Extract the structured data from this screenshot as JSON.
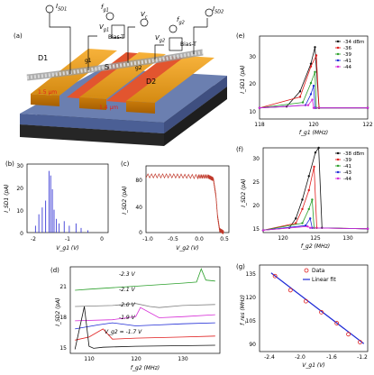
{
  "panel_a": {
    "label": "(a)",
    "ids1": "I",
    "ids1_sub": "SD1",
    "fg1": "f",
    "fg1_sub": "g1",
    "vc": "V",
    "vc_sub": "c",
    "fg2": "f",
    "fg2_sub": "g2",
    "ids2": "I",
    "ids2_sub": "SD2",
    "vg1": "V",
    "vg1_sub": "g1",
    "vg2": "V",
    "vg2_sub": "g2",
    "biasT": "Bias-T",
    "biasT2": "Bias-T",
    "d1": "D1",
    "s": "S",
    "d2": "D2",
    "g1": "g1",
    "g2": "g2",
    "l1": "1.5 μm",
    "l2": "1.4 μm"
  },
  "panel_b": {
    "label": "(b)",
    "ylabel": "I_SD1 (pA)",
    "xlabel": "V_g1 (V)",
    "yticks": [
      "30",
      "20",
      "10",
      "0"
    ],
    "xticks": [
      "-2",
      "-1",
      "0"
    ]
  },
  "panel_c": {
    "label": "(c)",
    "ylabel": "I_SD2 (pA)",
    "xlabel": "V_g2 (V)",
    "yticks": [
      "80",
      "40",
      "0"
    ],
    "xticks": [
      "-1.0",
      "-0.5",
      "0.0",
      "0.5"
    ]
  },
  "panel_d": {
    "label": "(d)",
    "ylabel": "I_SD2 (pA)",
    "xlabel": "f_g2 (MHz)",
    "yticks": [
      "21",
      "18",
      "15"
    ],
    "xticks": [
      "110",
      "120",
      "130"
    ],
    "annotations": [
      "-2.3 V",
      "-2.1 V",
      "-2.0 V",
      "-1.9 V",
      "V_g2 = -1.7 V"
    ],
    "colors": [
      "#2ca02c",
      "#7f7f7f",
      "#d62ad6",
      "#1f2bd6",
      "#e01c1c",
      "#111111"
    ]
  },
  "panel_e": {
    "label": "(e)",
    "ylabel": "I_SD1 (pA)",
    "xlabel": "f_g1 (MHz)",
    "yticks": [
      "30",
      "20",
      "10"
    ],
    "xticks": [
      "118",
      "120",
      "122"
    ],
    "legend": [
      "-34 dBm",
      "-36",
      "-39",
      "-41",
      "-44"
    ],
    "colors": [
      "#111111",
      "#e01c1c",
      "#2ca02c",
      "#1f2bd6",
      "#d62ad6"
    ]
  },
  "panel_f": {
    "label": "(f)",
    "ylabel": "I_SD2 (pA)",
    "xlabel": "f_g2 (MHz)",
    "yticks": [
      "30",
      "25",
      "20",
      "15"
    ],
    "xticks": [
      "120",
      "125",
      "130"
    ],
    "legend": [
      "-38 dBm",
      "-39",
      "-41",
      "-43",
      "-44"
    ],
    "colors": [
      "#111111",
      "#e01c1c",
      "#2ca02c",
      "#1f2bd6",
      "#d62ad6"
    ]
  },
  "panel_g": {
    "label": "(g)",
    "ylabel": "f_res (MHz)",
    "xlabel": "V_g1 (V)",
    "yticks": [
      "135",
      "120",
      "105",
      "90"
    ],
    "xticks": [
      "-2.4",
      "-2.0",
      "-1.6",
      "-1.2"
    ],
    "legend": [
      "Data",
      "Linear fit"
    ]
  },
  "chart_data": [
    {
      "type": "line",
      "panel": "(b)",
      "xlabel": "V_g1 (V)",
      "ylabel": "I_SD1 (pA)",
      "xlim": [
        -2.2,
        0.2
      ],
      "ylim": [
        0,
        30
      ],
      "series": [
        {
          "x": [
            -1.95,
            -1.85,
            -1.75,
            -1.65,
            -1.55,
            -1.5,
            -1.45,
            -1.4,
            -1.33,
            -1.25,
            -1.1,
            -0.95,
            -0.75,
            -0.6,
            -0.4
          ],
          "y": [
            3,
            8,
            11,
            14,
            27,
            25,
            19,
            10,
            6,
            4,
            5,
            3,
            4,
            2,
            1
          ]
        }
      ]
    },
    {
      "type": "line",
      "panel": "(c)",
      "xlabel": "V_g2 (V)",
      "ylabel": "I_SD2 (pA)",
      "xlim": [
        -1.0,
        0.6
      ],
      "ylim": [
        0,
        100
      ],
      "series": [
        {
          "x": [
            -1.0,
            -0.5,
            0.0,
            0.2,
            0.3,
            0.35,
            0.38,
            0.42,
            0.5
          ],
          "y": [
            85,
            85,
            84,
            84,
            80,
            55,
            25,
            4,
            0
          ]
        }
      ]
    },
    {
      "type": "line",
      "panel": "(d)",
      "xlabel": "f_g2 (MHz)",
      "ylabel": "I_SD2 (pA)",
      "xlim": [
        106,
        138
      ],
      "ylim": [
        14,
        22.5
      ],
      "series": [
        {
          "name": "-2.3 V",
          "x": [
            107,
            110,
            120,
            130,
            133,
            134,
            135,
            137
          ],
          "y": [
            20.2,
            20.3,
            20.6,
            20.9,
            21.0,
            22.3,
            21.2,
            21.1
          ]
        },
        {
          "name": "-2.1 V",
          "x": [
            107,
            115,
            120,
            123,
            125,
            130,
            137
          ],
          "y": [
            18.6,
            18.7,
            18.9,
            18.6,
            18.5,
            18.7,
            18.8
          ]
        },
        {
          "name": "-2.0 V",
          "x": [
            107,
            115,
            120,
            121,
            125,
            130,
            137
          ],
          "y": [
            17.2,
            17.3,
            17.6,
            18.5,
            17.5,
            17.6,
            17.8
          ]
        },
        {
          "name": "-1.9 V",
          "x": [
            107,
            112,
            115,
            120,
            125,
            130,
            137
          ],
          "y": [
            16.4,
            16.8,
            17.0,
            16.7,
            16.8,
            16.9,
            17.0
          ]
        },
        {
          "name": "-1.7 V",
          "x": [
            107,
            110,
            113,
            115,
            120,
            130,
            137
          ],
          "y": [
            15.3,
            15.6,
            16.4,
            15.4,
            15.5,
            15.6,
            15.7
          ]
        },
        {
          "name": "(black)",
          "x": [
            107,
            109,
            110,
            111,
            113,
            120,
            137
          ],
          "y": [
            14.4,
            18.6,
            14.7,
            14.5,
            14.6,
            14.7,
            14.8
          ]
        }
      ]
    },
    {
      "type": "line",
      "panel": "(e)",
      "xlabel": "f_g1 (MHz)",
      "ylabel": "I_SD1 (pA)",
      "xlim": [
        118,
        122
      ],
      "ylim": [
        5,
        35
      ],
      "series": [
        {
          "name": "-34 dBm",
          "x": [
            118,
            119,
            119.5,
            119.9,
            120.05,
            120.2,
            122
          ],
          "y": [
            9,
            9.5,
            15,
            25,
            31,
            9,
            9
          ]
        },
        {
          "name": "-36",
          "x": [
            118,
            119.5,
            119.9,
            120.1,
            120.2,
            122
          ],
          "y": [
            9,
            13,
            24,
            28,
            9,
            9
          ]
        },
        {
          "name": "-39",
          "x": [
            118,
            119.6,
            119.9,
            120.05,
            120.1,
            122
          ],
          "y": [
            9,
            11,
            18,
            22,
            9,
            9
          ]
        },
        {
          "name": "-41",
          "x": [
            118,
            119.7,
            119.9,
            120.0,
            120.05,
            122
          ],
          "y": [
            9,
            10,
            14,
            17,
            9,
            9
          ]
        },
        {
          "name": "-44",
          "x": [
            118,
            119.8,
            119.95,
            120.0,
            122
          ],
          "y": [
            9,
            10,
            12,
            9,
            9
          ]
        }
      ]
    },
    {
      "type": "line",
      "panel": "(f)",
      "xlabel": "f_g2 (MHz)",
      "ylabel": "I_SD2 (pA)",
      "xlim": [
        117,
        133
      ],
      "ylim": [
        15,
        33
      ],
      "series": [
        {
          "name": "-38 dBm",
          "x": [
            117,
            121,
            122,
            123,
            124,
            125,
            125.5,
            126,
            133
          ],
          "y": [
            15.5,
            16,
            18,
            22,
            27,
            32,
            33,
            16,
            15.8
          ]
        },
        {
          "name": "-39",
          "x": [
            117,
            122,
            123,
            124,
            124.8,
            125.2,
            133
          ],
          "y": [
            15.5,
            17,
            20,
            24,
            29,
            16,
            15.8
          ]
        },
        {
          "name": "-41",
          "x": [
            117,
            123,
            124,
            124.5,
            124.8,
            133
          ],
          "y": [
            15.5,
            17,
            20,
            22,
            16,
            15.8
          ]
        },
        {
          "name": "-43",
          "x": [
            117,
            123.5,
            124.2,
            124.5,
            133
          ],
          "y": [
            15.5,
            16.5,
            18,
            16,
            15.8
          ]
        },
        {
          "name": "-44",
          "x": [
            117,
            123.8,
            124.2,
            133
          ],
          "y": [
            15.5,
            16.3,
            16,
            15.8
          ]
        }
      ]
    },
    {
      "type": "scatter",
      "panel": "(g)",
      "xlabel": "V_g1 (V)",
      "ylabel": "f_res (MHz)",
      "xlim": [
        -2.5,
        -1.1
      ],
      "ylim": [
        85,
        140
      ],
      "series": [
        {
          "name": "Data",
          "x": [
            -2.3,
            -2.1,
            -1.9,
            -1.7,
            -1.5,
            -1.35,
            -1.2
          ],
          "y": [
            133,
            124,
            117,
            110,
            103,
            96,
            91
          ]
        },
        {
          "name": "Linear fit",
          "x": [
            -2.35,
            -1.15
          ],
          "y": [
            135,
            90
          ]
        }
      ]
    }
  ]
}
